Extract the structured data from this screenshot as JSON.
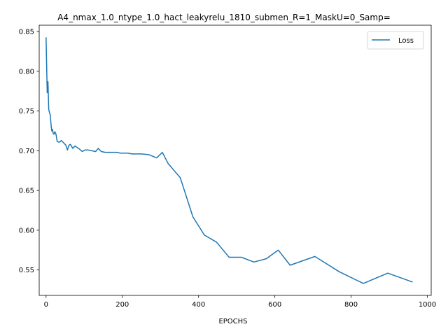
{
  "chart_data": {
    "type": "line",
    "title": "A4_nmax_1.0_ntype_1.0_hact_leakyrelu_1810_submen_R=1_MaskU=0_Samp=",
    "xlabel": "EPOCHS",
    "ylabel": "",
    "xlim": [
      -18,
      1010
    ],
    "ylim": [
      0.518,
      0.858
    ],
    "xticks": [
      0,
      200,
      400,
      600,
      800,
      1000
    ],
    "xtick_labels": [
      "0",
      "200",
      "400",
      "600",
      "800",
      "1000"
    ],
    "yticks": [
      0.55,
      0.6,
      0.65,
      0.7,
      0.75,
      0.8,
      0.85
    ],
    "ytick_labels": [
      "0.55",
      "0.60",
      "0.65",
      "0.70",
      "0.75",
      "0.80",
      "0.85"
    ],
    "grid": false,
    "legend_position": "top-right",
    "series": [
      {
        "name": "Loss",
        "color": "#1f77b4",
        "x": [
          0,
          3,
          5,
          7,
          9,
          11,
          13,
          15,
          17,
          19,
          21,
          23,
          26,
          29,
          32,
          36,
          40,
          44,
          48,
          52,
          56,
          60,
          64,
          70,
          76,
          82,
          88,
          95,
          102,
          110,
          120,
          130,
          137,
          145,
          155,
          165,
          175,
          185,
          195,
          205,
          215,
          225,
          235,
          250,
          270,
          290,
          305,
          320,
          352,
          385,
          415,
          447,
          480,
          512,
          545,
          577,
          609,
          640,
          705,
          768,
          832,
          896,
          960
        ],
        "y": [
          0.842,
          0.773,
          0.787,
          0.752,
          0.748,
          0.745,
          0.733,
          0.725,
          0.727,
          0.721,
          0.721,
          0.724,
          0.721,
          0.712,
          0.711,
          0.711,
          0.713,
          0.711,
          0.709,
          0.707,
          0.701,
          0.707,
          0.708,
          0.703,
          0.706,
          0.704,
          0.702,
          0.699,
          0.701,
          0.701,
          0.7,
          0.699,
          0.703,
          0.699,
          0.698,
          0.698,
          0.698,
          0.698,
          0.697,
          0.697,
          0.697,
          0.696,
          0.696,
          0.696,
          0.695,
          0.691,
          0.698,
          0.684,
          0.666,
          0.617,
          0.594,
          0.585,
          0.566,
          0.566,
          0.56,
          0.564,
          0.575,
          0.556,
          0.567,
          0.548,
          0.533,
          0.546,
          0.535
        ]
      }
    ]
  }
}
